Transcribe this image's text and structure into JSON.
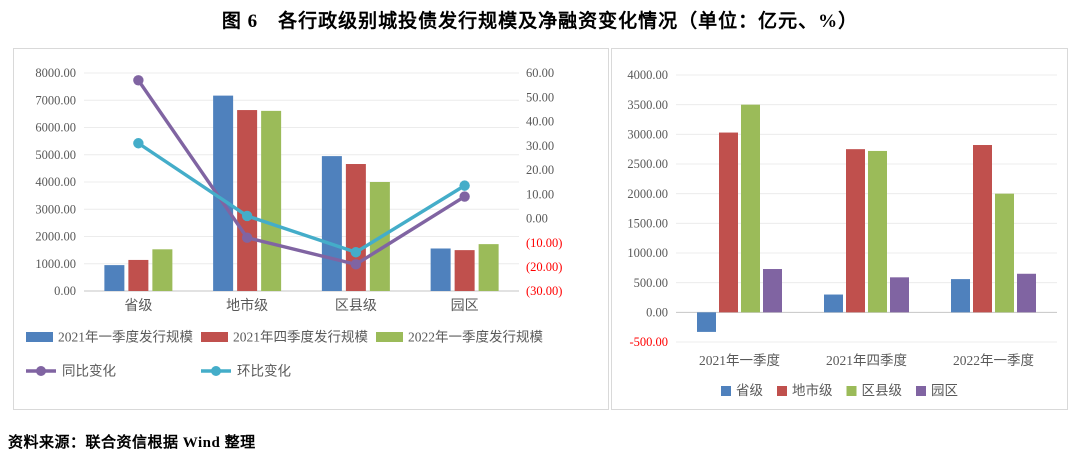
{
  "page": {
    "title": "图 6　各行政级别城投债发行规模及净融资变化情况（单位：亿元、%）",
    "source": "资料来源：联合资信根据 Wind 整理"
  },
  "colors": {
    "bar_blue": "#4F81BD",
    "bar_red": "#C0504D",
    "bar_green": "#9BBB59",
    "line_purple": "#8064A2",
    "line_cyan": "#44ADC9",
    "tick_gray": "#595959",
    "negative_red": "#FF0000",
    "gridline": "#ECECEC",
    "axis_line": "#C6C6C6",
    "panel_border": "#D9D9D9"
  },
  "chart_data": [
    {
      "type": "bar",
      "subtype": "grouped-bars-with-two-lines-on-secondary-axis",
      "title": "",
      "categories": [
        "省级",
        "地市级",
        "区县级",
        "园区"
      ],
      "series": [
        {
          "kind": "bar",
          "name": "2021年一季度发行规模",
          "color": "#4F81BD",
          "values": [
            950,
            7170,
            4950,
            1560
          ]
        },
        {
          "kind": "bar",
          "name": "2021年四季度发行规模",
          "color": "#C0504D",
          "values": [
            1140,
            6640,
            4660,
            1500
          ]
        },
        {
          "kind": "bar",
          "name": "2022年一季度发行规模",
          "color": "#9BBB59",
          "values": [
            1530,
            6610,
            4000,
            1720
          ]
        },
        {
          "kind": "line",
          "name": "同比变化",
          "axis": "right",
          "color": "#8064A2",
          "values": [
            57,
            -8,
            -19,
            9
          ]
        },
        {
          "kind": "line",
          "name": "环比变化",
          "axis": "right",
          "color": "#44ADC9",
          "values": [
            31,
            1,
            -14,
            13.5
          ]
        }
      ],
      "y_left": {
        "min": 0,
        "max": 8000,
        "step": 1000,
        "tick_labels": [
          "8000.00",
          "7000.00",
          "6000.00",
          "5000.00",
          "4000.00",
          "3000.00",
          "2000.00",
          "1000.00",
          "0.00"
        ]
      },
      "y_right": {
        "min": -30,
        "max": 60,
        "step": 10,
        "tick_labels": [
          "60.00",
          "50.00",
          "40.00",
          "30.00",
          "20.00",
          "10.00",
          "0.00",
          "(10.00)",
          "(20.00)",
          "(30.00)"
        ]
      },
      "grid": "horizontal gridlines from primary axis",
      "legend_position": "below plot, two rows"
    },
    {
      "type": "bar",
      "subtype": "grouped-bars",
      "title": "",
      "categories": [
        "2021年一季度",
        "2021年四季度",
        "2022年一季度"
      ],
      "series": [
        {
          "kind": "bar",
          "name": "省级",
          "color": "#4F81BD",
          "values": [
            -330,
            300,
            560
          ]
        },
        {
          "kind": "bar",
          "name": "地市级",
          "color": "#C0504D",
          "values": [
            3030,
            2750,
            2820
          ]
        },
        {
          "kind": "bar",
          "name": "区县级",
          "color": "#9BBB59",
          "values": [
            3500,
            2720,
            2000
          ]
        },
        {
          "kind": "bar",
          "name": "园区",
          "color": "#8064A2",
          "values": [
            730,
            590,
            650
          ]
        }
      ],
      "y": {
        "min": -500,
        "max": 4000,
        "step": 500,
        "tick_labels": [
          "4000.00",
          "3500.00",
          "3000.00",
          "2500.00",
          "2000.00",
          "1500.00",
          "1000.00",
          "500.00",
          "0.00",
          "-500.00"
        ]
      },
      "grid": "horizontal gridlines",
      "legend_position": "below plot, one centered row"
    }
  ]
}
